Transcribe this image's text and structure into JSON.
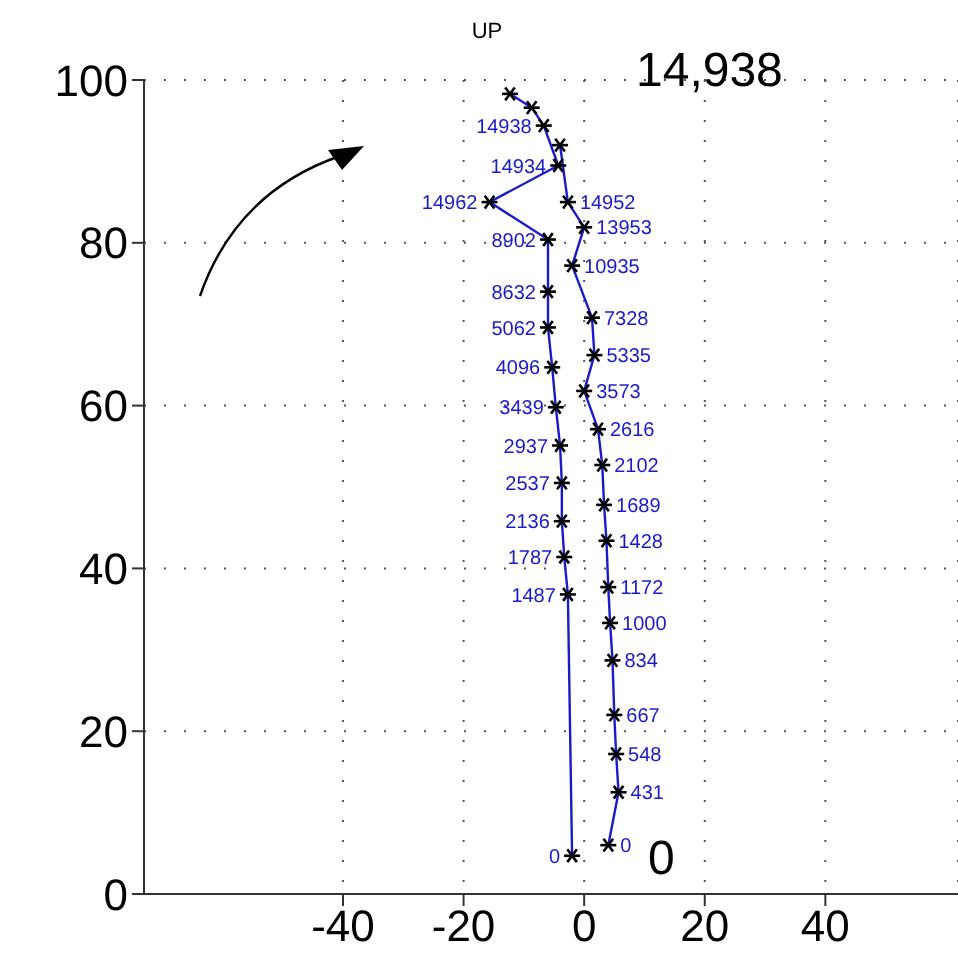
{
  "chart_data": {
    "type": "line",
    "title": "UP",
    "xlim": [
      -73,
      62
    ],
    "ylim": [
      0,
      100
    ],
    "xticks": [
      -40,
      -20,
      0,
      20,
      40
    ],
    "yticks": [
      0,
      20,
      40,
      60,
      80,
      100
    ],
    "grid": true,
    "marker": "cross",
    "series": [
      {
        "color": "#1a1acc",
        "x": [
          -2,
          -2.7,
          -3.3,
          -3.7,
          -3.7,
          -4,
          -4.7,
          -5.3,
          -6,
          -6,
          -6,
          -15.7,
          -4.3,
          -6.7,
          -8.7,
          -12.3
        ],
        "values": [
          4.7,
          36.8,
          41.4,
          45.8,
          50.5,
          55.1,
          59.8,
          64.7,
          69.6,
          74,
          80.4,
          85,
          89.5,
          94.4,
          96.6,
          98.3
        ]
      },
      {
        "color": "#1a1acc",
        "x": [
          4,
          5.7,
          5.3,
          5,
          4.7,
          4.3,
          4,
          3.7,
          3.3,
          3,
          2.3,
          0,
          1.7,
          1.3,
          -2,
          0,
          -2.7,
          -4
        ],
        "values": [
          6,
          12.5,
          17.2,
          22,
          28.7,
          33.3,
          37.7,
          43.4,
          47.8,
          52.7,
          57.1,
          61.8,
          66.2,
          70.8,
          77.2,
          81.9,
          85,
          92
        ]
      }
    ],
    "annotations": [
      {
        "text": "0",
        "x": -2,
        "y": 4.7
      },
      {
        "text": "1487",
        "x": -2.7,
        "y": 36.8
      },
      {
        "text": "1787",
        "x": -3.3,
        "y": 41.4
      },
      {
        "text": "2136",
        "x": -3.7,
        "y": 45.8
      },
      {
        "text": "2537",
        "x": -3.7,
        "y": 50.5
      },
      {
        "text": "2937",
        "x": -4,
        "y": 55.1
      },
      {
        "text": "3439",
        "x": -4.7,
        "y": 59.8
      },
      {
        "text": "4096",
        "x": -5.3,
        "y": 64.7
      },
      {
        "text": "5062",
        "x": -6,
        "y": 69.6
      },
      {
        "text": "8632",
        "x": -6,
        "y": 74
      },
      {
        "text": "8902",
        "x": -6,
        "y": 80.4
      },
      {
        "text": "14962",
        "x": -15.7,
        "y": 85
      },
      {
        "text": "14952",
        "x": -2.7,
        "y": 85
      },
      {
        "text": "14934",
        "x": -4.3,
        "y": 89.5
      },
      {
        "text": "14938",
        "x": -6.7,
        "y": 94.4
      },
      {
        "text": "0",
        "x": 4,
        "y": 6
      },
      {
        "text": "431",
        "x": 5.7,
        "y": 12.5
      },
      {
        "text": "548",
        "x": 5.3,
        "y": 17.2
      },
      {
        "text": "667",
        "x": 5,
        "y": 22
      },
      {
        "text": "834",
        "x": 4.7,
        "y": 28.7
      },
      {
        "text": "1000",
        "x": 4.3,
        "y": 33.3
      },
      {
        "text": "1172",
        "x": 4,
        "y": 37.7
      },
      {
        "text": "1428",
        "x": 3.7,
        "y": 43.4
      },
      {
        "text": "1689",
        "x": 3.3,
        "y": 47.8
      },
      {
        "text": "2102",
        "x": 3,
        "y": 52.7
      },
      {
        "text": "2616",
        "x": 2.3,
        "y": 57.1
      },
      {
        "text": "3573",
        "x": 0,
        "y": 61.8
      },
      {
        "text": "5335",
        "x": 1.7,
        "y": 66.2
      },
      {
        "text": "7328",
        "x": 1.3,
        "y": 70.8
      },
      {
        "text": "10935",
        "x": -2,
        "y": 77.2
      },
      {
        "text": "13953",
        "x": 0,
        "y": 81.9
      },
      "14,938",
      "0"
    ]
  }
}
